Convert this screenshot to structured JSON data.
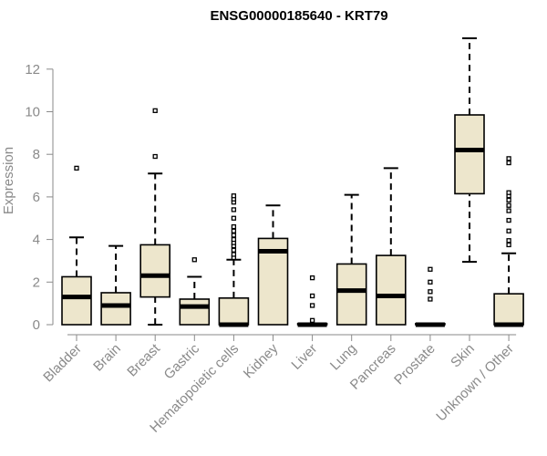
{
  "chart_data": {
    "type": "boxplot",
    "title": "ENSG00000185640 - KRT79",
    "xlabel": "",
    "ylabel": "Expression",
    "ylim": [
      0,
      13.5
    ],
    "yticks": [
      0,
      2,
      4,
      6,
      8,
      10,
      12
    ],
    "grid": false,
    "box_color": "#ede6cc",
    "categories": [
      "Bladder",
      "Brain",
      "Breast",
      "Gastric",
      "Hematopoietic cells",
      "Kidney",
      "Liver",
      "Lung",
      "Pancreas",
      "Prostate",
      "Skin",
      "Unknown / Other"
    ],
    "boxes": [
      {
        "min": 0,
        "q1": 0.0,
        "median": 1.3,
        "q3": 2.25,
        "max": 4.1,
        "outliers": [
          7.35
        ]
      },
      {
        "min": 0,
        "q1": 0.0,
        "median": 0.9,
        "q3": 1.5,
        "max": 3.7,
        "outliers": []
      },
      {
        "min": 0,
        "q1": 1.3,
        "median": 2.3,
        "q3": 3.75,
        "max": 7.1,
        "outliers": [
          7.9,
          10.05
        ]
      },
      {
        "min": 0,
        "q1": 0.0,
        "median": 0.85,
        "q3": 1.2,
        "max": 2.25,
        "outliers": [
          3.05
        ]
      },
      {
        "min": 0,
        "q1": 0.0,
        "median": 0.0,
        "q3": 1.25,
        "max": 3.05,
        "outliers": [
          3.15,
          3.3,
          3.5,
          3.7,
          3.85,
          4.0,
          4.2,
          4.4,
          4.6,
          5.0,
          5.4,
          5.75,
          5.9,
          6.05
        ]
      },
      {
        "min": 0,
        "q1": 0.0,
        "median": 3.45,
        "q3": 4.05,
        "max": 5.6,
        "outliers": []
      },
      {
        "min": 0,
        "q1": 0.0,
        "median": 0.0,
        "q3": 0.05,
        "max": 0.05,
        "outliers": [
          0.2,
          0.9,
          1.35,
          2.2
        ]
      },
      {
        "min": 0,
        "q1": 0.0,
        "median": 1.6,
        "q3": 2.85,
        "max": 6.1,
        "outliers": []
      },
      {
        "min": 0,
        "q1": 0.0,
        "median": 1.35,
        "q3": 3.25,
        "max": 7.35,
        "outliers": []
      },
      {
        "min": 0,
        "q1": 0.0,
        "median": 0.0,
        "q3": 0.05,
        "max": 0.05,
        "outliers": [
          1.2,
          1.55,
          2.0,
          2.6
        ]
      },
      {
        "min": 2.95,
        "q1": 6.15,
        "median": 8.2,
        "q3": 9.85,
        "max": 13.45,
        "outliers": []
      },
      {
        "min": 0,
        "q1": 0.0,
        "median": 0.0,
        "q3": 1.45,
        "max": 3.35,
        "outliers": [
          3.75,
          3.95,
          4.4,
          4.9,
          5.35,
          5.6,
          5.85,
          6.05,
          6.2,
          7.6,
          7.8
        ]
      }
    ]
  }
}
